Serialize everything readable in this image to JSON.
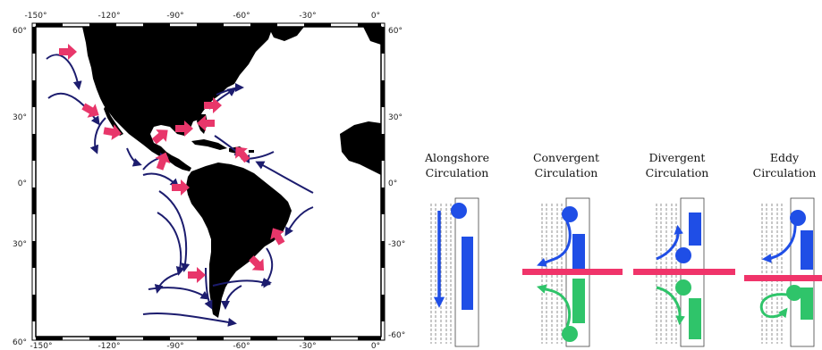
{
  "map": {
    "lon_ticks": [
      "-150°",
      "-120°",
      "-90°",
      "-60°",
      "-30°",
      "0°"
    ],
    "lat_ticks": [
      "60°",
      "30°",
      "0°",
      "-30°",
      "-60°"
    ],
    "lat_ticks_left": [
      "60°",
      "30°",
      "0°",
      "30°",
      "60°"
    ],
    "land_color": "#000000",
    "current_arrow_color": "#1c1c6e",
    "marker_arrow_color": "#e8366a"
  },
  "panels": [
    {
      "title_line1": "Alongshore",
      "title_line2": "Circulation"
    },
    {
      "title_line1": "Convergent",
      "title_line2": "Circulation"
    },
    {
      "title_line1": "Divergent",
      "title_line2": "Circulation"
    },
    {
      "title_line1": "Eddy",
      "title_line2": "Circulation"
    }
  ],
  "colors": {
    "blue": "#1f4ee6",
    "green": "#2fc46a",
    "front": "#f0346a"
  }
}
